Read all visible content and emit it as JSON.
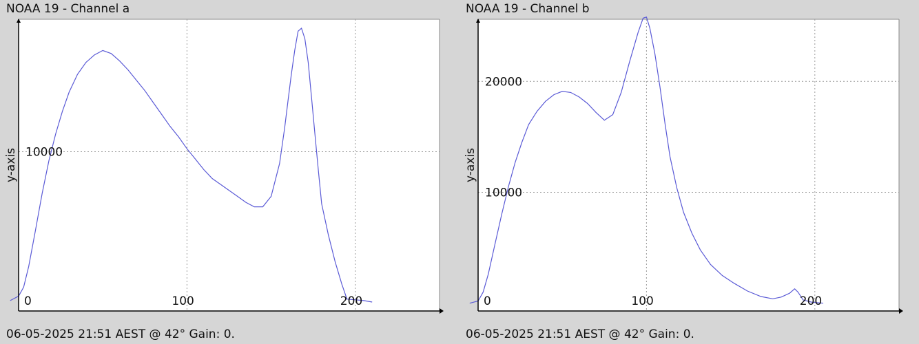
{
  "chart_data": [
    {
      "type": "line",
      "title": "NOAA 19 - Channel a",
      "ylabel": "y-axis",
      "xlabel": "",
      "footer": "06-05-2025 21:51 AEST @ 42° Gain: 0.",
      "xlim": [
        0,
        250
      ],
      "ylim": [
        -700,
        18900
      ],
      "x_ticks": [
        0,
        100,
        200
      ],
      "y_ticks": [
        10000
      ],
      "grid": true,
      "series": [
        {
          "color": "#5a5ad6",
          "points": [
            [
              -5,
              0
            ],
            [
              0,
              300
            ],
            [
              3,
              900
            ],
            [
              6,
              2300
            ],
            [
              10,
              4700
            ],
            [
              14,
              7200
            ],
            [
              18,
              9400
            ],
            [
              22,
              11200
            ],
            [
              26,
              12700
            ],
            [
              30,
              14000
            ],
            [
              35,
              15200
            ],
            [
              40,
              16000
            ],
            [
              45,
              16500
            ],
            [
              50,
              16800
            ],
            [
              55,
              16600
            ],
            [
              60,
              16100
            ],
            [
              65,
              15500
            ],
            [
              70,
              14800
            ],
            [
              75,
              14100
            ],
            [
              80,
              13300
            ],
            [
              85,
              12500
            ],
            [
              90,
              11700
            ],
            [
              95,
              11000
            ],
            [
              100,
              10200
            ],
            [
              105,
              9500
            ],
            [
              110,
              8800
            ],
            [
              115,
              8200
            ],
            [
              120,
              7800
            ],
            [
              125,
              7400
            ],
            [
              130,
              7000
            ],
            [
              135,
              6600
            ],
            [
              140,
              6300
            ],
            [
              145,
              6300
            ],
            [
              150,
              7000
            ],
            [
              155,
              9200
            ],
            [
              158,
              11600
            ],
            [
              160,
              13400
            ],
            [
              162,
              15200
            ],
            [
              164,
              16800
            ],
            [
              166,
              18100
            ],
            [
              168,
              18300
            ],
            [
              170,
              17600
            ],
            [
              172,
              16000
            ],
            [
              174,
              13600
            ],
            [
              176,
              11200
            ],
            [
              178,
              8800
            ],
            [
              180,
              6500
            ],
            [
              184,
              4400
            ],
            [
              188,
              2600
            ],
            [
              192,
              1100
            ],
            [
              195,
              100
            ],
            [
              200,
              50
            ],
            [
              205,
              0
            ],
            [
              210,
              -100
            ]
          ]
        }
      ]
    },
    {
      "type": "line",
      "title": "NOAA 19 - Channel b",
      "ylabel": "y-axis",
      "xlabel": "",
      "footer": "06-05-2025 21:51 AEST @ 42° Gain: 0.",
      "xlim": [
        0,
        250
      ],
      "ylim": [
        -700,
        25600
      ],
      "x_ticks": [
        0,
        100,
        200
      ],
      "y_ticks": [
        10000,
        20000
      ],
      "grid": true,
      "series": [
        {
          "color": "#5a5ad6",
          "points": [
            [
              -5,
              0
            ],
            [
              0,
              200
            ],
            [
              3,
              1000
            ],
            [
              6,
              2600
            ],
            [
              10,
              5300
            ],
            [
              14,
              8000
            ],
            [
              18,
              10500
            ],
            [
              22,
              12700
            ],
            [
              26,
              14500
            ],
            [
              30,
              16100
            ],
            [
              35,
              17300
            ],
            [
              40,
              18200
            ],
            [
              45,
              18800
            ],
            [
              50,
              19100
            ],
            [
              55,
              19000
            ],
            [
              60,
              18600
            ],
            [
              65,
              18000
            ],
            [
              70,
              17200
            ],
            [
              75,
              16500
            ],
            [
              80,
              17000
            ],
            [
              85,
              19000
            ],
            [
              90,
              21800
            ],
            [
              95,
              24400
            ],
            [
              98,
              25700
            ],
            [
              100,
              25800
            ],
            [
              102,
              24800
            ],
            [
              105,
              22500
            ],
            [
              108,
              19500
            ],
            [
              111,
              16200
            ],
            [
              114,
              13200
            ],
            [
              118,
              10400
            ],
            [
              122,
              8200
            ],
            [
              127,
              6300
            ],
            [
              132,
              4800
            ],
            [
              138,
              3500
            ],
            [
              145,
              2500
            ],
            [
              152,
              1800
            ],
            [
              160,
              1100
            ],
            [
              168,
              600
            ],
            [
              175,
              400
            ],
            [
              180,
              550
            ],
            [
              185,
              900
            ],
            [
              188,
              1300
            ],
            [
              190,
              1000
            ],
            [
              193,
              300
            ],
            [
              198,
              100
            ],
            [
              205,
              0
            ]
          ]
        }
      ]
    }
  ]
}
